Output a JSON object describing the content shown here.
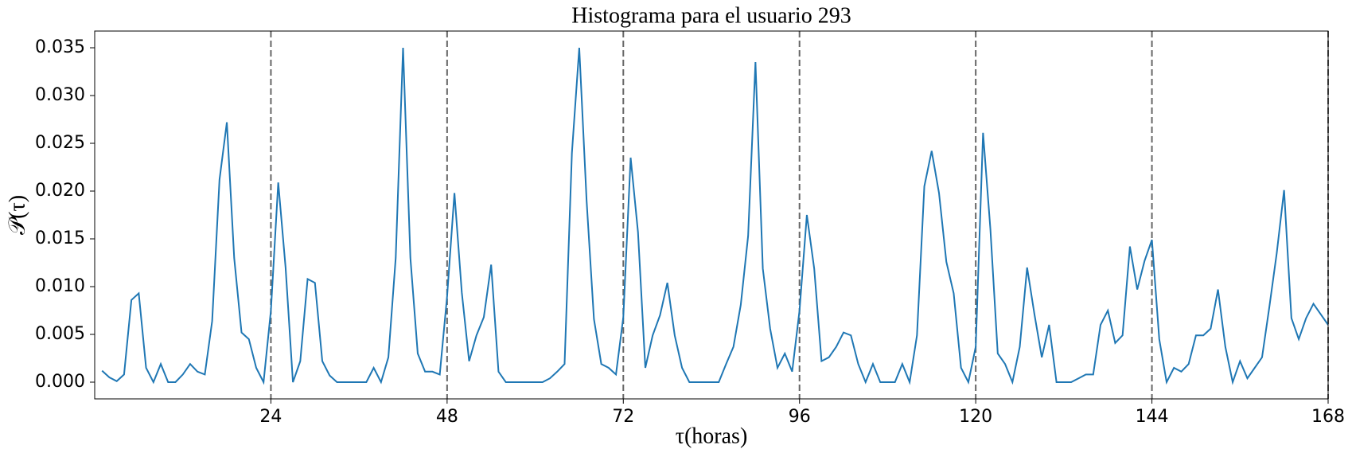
{
  "chart_data": {
    "type": "line",
    "title": "Histograma para el usuario 293",
    "x_label": "τ(horas)",
    "y_label": "𝒫(τ)",
    "x": [
      1,
      2,
      3,
      4,
      5,
      6,
      7,
      8,
      9,
      10,
      11,
      12,
      13,
      14,
      15,
      16,
      17,
      18,
      19,
      20,
      21,
      22,
      23,
      24,
      25,
      26,
      27,
      28,
      29,
      30,
      31,
      32,
      33,
      34,
      35,
      36,
      37,
      38,
      39,
      40,
      41,
      42,
      43,
      44,
      45,
      46,
      47,
      48,
      49,
      50,
      51,
      52,
      53,
      54,
      55,
      56,
      57,
      58,
      59,
      60,
      61,
      62,
      63,
      64,
      65,
      66,
      67,
      68,
      69,
      70,
      71,
      72,
      73,
      74,
      75,
      76,
      77,
      78,
      79,
      80,
      81,
      82,
      83,
      84,
      85,
      86,
      87,
      88,
      89,
      90,
      91,
      92,
      93,
      94,
      95,
      96,
      97,
      98,
      99,
      100,
      101,
      102,
      103,
      104,
      105,
      106,
      107,
      108,
      109,
      110,
      111,
      112,
      113,
      114,
      115,
      116,
      117,
      118,
      119,
      120,
      121,
      122,
      123,
      124,
      125,
      126,
      127,
      128,
      129,
      130,
      131,
      132,
      133,
      134,
      135,
      136,
      137,
      138,
      139,
      140,
      141,
      142,
      143,
      144,
      145,
      146,
      147,
      148,
      149,
      150,
      151,
      152,
      153,
      154,
      155,
      156,
      157,
      158,
      159,
      160,
      161,
      162,
      163,
      164,
      165,
      166,
      167,
      168
    ],
    "series": [
      {
        "name": "P",
        "color": "#1f77b4",
        "values": [
          0.0012,
          0.0005,
          0.0001,
          0.0008,
          0.0086,
          0.0093,
          0.0015,
          0,
          0.0019,
          0,
          0,
          0.0008,
          0.0019,
          0.0011,
          0.0008,
          0.0064,
          0.0212,
          0.0272,
          0.013,
          0.0052,
          0.0045,
          0.0015,
          0,
          0.0075,
          0.0209,
          0.012,
          0,
          0.0022,
          0.0108,
          0.0104,
          0.0022,
          0.0007,
          0,
          0,
          0,
          0,
          0,
          0.0015,
          0,
          0.0026,
          0.013,
          0.035,
          0.013,
          0.003,
          0.0011,
          0.0011,
          0.0008,
          0.009,
          0.0198,
          0.0094,
          0.0022,
          0.0049,
          0.0068,
          0.0123,
          0.0011,
          0,
          0,
          0,
          0,
          0,
          0,
          0.0004,
          0.0011,
          0.0019,
          0.024,
          0.035,
          0.019,
          0.0066,
          0.0019,
          0.0015,
          0.0008,
          0.0068,
          0.0235,
          0.0157,
          0.0015,
          0.0049,
          0.007,
          0.0104,
          0.0049,
          0.0015,
          0,
          0,
          0,
          0,
          0,
          0.0019,
          0.0037,
          0.0081,
          0.0153,
          0.0335,
          0.0119,
          0.0056,
          0.0015,
          0.003,
          0.0011,
          0.0075,
          0.0175,
          0.0119,
          0.0022,
          0.0026,
          0.0037,
          0.0052,
          0.0049,
          0.0019,
          0,
          0.0019,
          0,
          0,
          0,
          0.0019,
          0,
          0.0049,
          0.0205,
          0.0242,
          0.0198,
          0.0126,
          0.0093,
          0.0015,
          0,
          0.0037,
          0.0261,
          0.016,
          0.003,
          0.0019,
          0,
          0.0037,
          0.012,
          0.0071,
          0.0026,
          0.006,
          0,
          0,
          0,
          0.0004,
          0.0008,
          0.0008,
          0.006,
          0.0075,
          0.0041,
          0.0049,
          0.0142,
          0.0097,
          0.0127,
          0.0149,
          0.0045,
          0,
          0.0015,
          0.0011,
          0.0019,
          0.0049,
          0.0049,
          0.0056,
          0.0097,
          0.0037,
          0,
          0.0022,
          0.0004,
          0.0015,
          0.0026,
          0.0079,
          0.0135,
          0.0201,
          0.0067,
          0.0045,
          0.0067,
          0.0082,
          0.0071,
          0.006
        ]
      }
    ],
    "xlim": [
      0,
      168
    ],
    "xticks": [
      24,
      48,
      72,
      96,
      120,
      144,
      168
    ],
    "ylim": [
      -0.00175,
      0.03675
    ],
    "yticks": [
      {
        "value": 0,
        "label": "0.000"
      },
      {
        "value": 0.005,
        "label": "0.005"
      },
      {
        "value": 0.01,
        "label": "0.010"
      },
      {
        "value": 0.015,
        "label": "0.015"
      },
      {
        "value": 0.02,
        "label": "0.020"
      },
      {
        "value": 0.025,
        "label": "0.025"
      },
      {
        "value": 0.03,
        "label": "0.030"
      },
      {
        "value": 0.035,
        "label": "0.035"
      }
    ],
    "grid": "x-dashed"
  }
}
